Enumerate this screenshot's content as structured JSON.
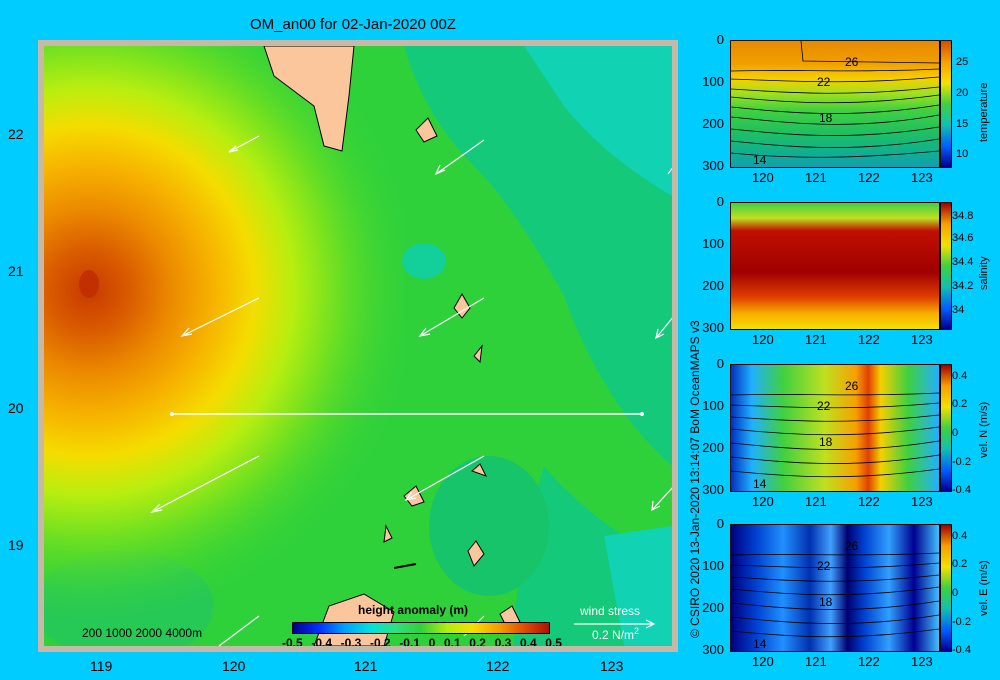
{
  "title": "OM_an00 for 02-Jan-2020 00Z",
  "map": {
    "lat_labels": [
      "22",
      "21",
      "20",
      "19"
    ],
    "lon_labels": [
      "119",
      "120",
      "121",
      "122",
      "123"
    ],
    "depth_legend": "200  1000  2000  4000m",
    "colorbar_title": "height anomaly  (m)",
    "colorbar_ticks": [
      "-0.5",
      "-0.4",
      "-0.3",
      "-0.2",
      "-0.1",
      "0",
      "0.1",
      "0.2",
      "0.3",
      "0.4",
      "0.5"
    ],
    "wind_label": "wind stress",
    "wind_scale": "0.2 N/m",
    "wind_scale_sup": "2"
  },
  "credit": "© CSIRO 2020  13-Jan-2020 13:14:07 BoM OceanMAPS v3",
  "panels": [
    {
      "id": "temperature",
      "label": "temperature",
      "y_ticks": [
        "0",
        "100",
        "200",
        "300"
      ],
      "x_ticks": [
        "120",
        "121",
        "122",
        "123"
      ],
      "cb_ticks": [
        "25",
        "20",
        "15",
        "10"
      ],
      "contours": [
        "26",
        "22",
        "18",
        "14"
      ]
    },
    {
      "id": "salinity",
      "label": "salinity",
      "y_ticks": [
        "0",
        "100",
        "200",
        "300"
      ],
      "x_ticks": [
        "120",
        "121",
        "122",
        "123"
      ],
      "cb_ticks": [
        "34.8",
        "34.6",
        "34.4",
        "34.2",
        "34"
      ],
      "contours": []
    },
    {
      "id": "veln",
      "label": "vel. N (m/s)",
      "y_ticks": [
        "0",
        "100",
        "200",
        "300"
      ],
      "x_ticks": [
        "120",
        "121",
        "122",
        "123"
      ],
      "cb_ticks": [
        "0.4",
        "0.2",
        "0",
        "-0.2",
        "-0.4"
      ],
      "contours": [
        "26",
        "22",
        "18",
        "14"
      ]
    },
    {
      "id": "vele",
      "label": "vel. E (m/s)",
      "y_ticks": [
        "0",
        "100",
        "200",
        "300"
      ],
      "x_ticks": [
        "120",
        "121",
        "122",
        "123"
      ],
      "cb_ticks": [
        "0.4",
        "0.2",
        "0",
        "-0.2",
        "-0.4"
      ],
      "contours": [
        "26",
        "22",
        "18",
        "14"
      ]
    }
  ],
  "colors": {
    "background": "#00ccff",
    "land": "#fcc69c",
    "ocean_mid": "#2fd13a"
  }
}
